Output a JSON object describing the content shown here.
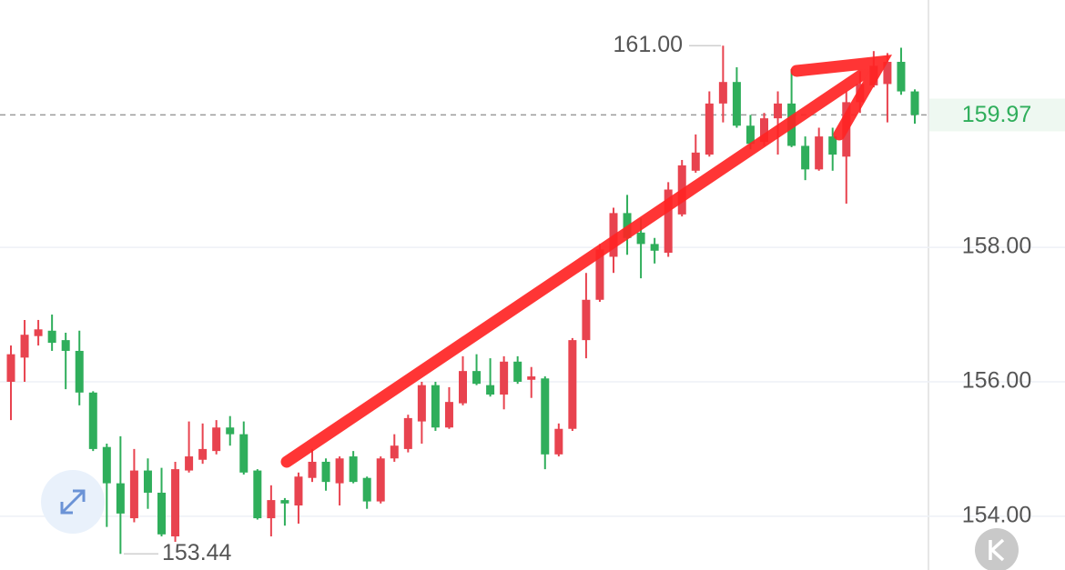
{
  "chart_data": {
    "type": "candlestick",
    "open": [
      156.0,
      156.36,
      156.68,
      156.76,
      156.62,
      156.46,
      155.84,
      155.03,
      154.49,
      153.97,
      154.68,
      154.35,
      153.7,
      154.68,
      154.84,
      154.97,
      155.32,
      155.22,
      154.68,
      153.97,
      154.24,
      154.16,
      154.57,
      154.81,
      154.49,
      154.89,
      154.57,
      154.22,
      154.86,
      155.0,
      155.41,
      155.95,
      155.32,
      155.68,
      156.16,
      155.95,
      155.81,
      156.3,
      156.03,
      156.05,
      154.92,
      155.3,
      156.62,
      157.22,
      157.86,
      158.51,
      158.22,
      158.05,
      157.92,
      158.49,
      159.14,
      159.38,
      160.14,
      160.46,
      159.81,
      159.57,
      159.92,
      160.14,
      159.51,
      159.16,
      159.65,
      159.35,
      160.16,
      160.41,
      160.43,
      160.76,
      160.32
    ],
    "high": [
      156.54,
      156.92,
      156.92,
      157.0,
      156.73,
      156.76,
      155.86,
      155.08,
      155.19,
      155.0,
      154.86,
      154.72,
      154.81,
      155.41,
      155.38,
      155.43,
      155.49,
      155.41,
      154.7,
      154.46,
      154.27,
      154.65,
      155.0,
      154.86,
      154.89,
      154.97,
      154.59,
      154.89,
      155.22,
      155.51,
      156.0,
      156.0,
      155.92,
      156.38,
      156.41,
      156.35,
      156.38,
      156.38,
      156.22,
      156.08,
      155.38,
      156.65,
      157.62,
      158.05,
      158.59,
      158.78,
      158.43,
      158.14,
      158.97,
      159.3,
      159.68,
      160.32,
      161.0,
      160.68,
      159.97,
      160.0,
      160.32,
      160.65,
      159.65,
      159.78,
      159.78,
      160.32,
      160.62,
      160.92,
      160.89,
      160.97,
      160.35
    ],
    "low": [
      155.43,
      156.0,
      156.54,
      156.46,
      155.89,
      155.65,
      154.97,
      153.84,
      153.44,
      153.91,
      154.11,
      153.7,
      153.62,
      154.65,
      154.78,
      154.92,
      155.05,
      154.62,
      153.95,
      153.7,
      153.86,
      153.89,
      154.51,
      154.38,
      154.16,
      154.49,
      154.11,
      154.19,
      154.81,
      154.95,
      155.08,
      155.27,
      155.3,
      155.65,
      155.95,
      155.78,
      155.59,
      155.97,
      155.76,
      154.7,
      154.89,
      155.27,
      156.35,
      157.19,
      157.62,
      157.89,
      157.54,
      157.76,
      157.86,
      158.46,
      159.11,
      159.35,
      159.86,
      159.78,
      159.46,
      159.51,
      159.38,
      159.49,
      159.0,
      159.14,
      159.14,
      158.65,
      160.0,
      160.38,
      159.86,
      160.27,
      159.84
    ],
    "close": [
      156.41,
      156.7,
      156.78,
      156.58,
      156.46,
      155.84,
      155.0,
      154.49,
      154.04,
      154.68,
      154.35,
      153.73,
      154.7,
      154.89,
      155.0,
      155.32,
      155.22,
      154.65,
      153.97,
      154.24,
      154.19,
      154.59,
      154.81,
      154.51,
      154.86,
      154.51,
      154.22,
      154.86,
      155.05,
      155.46,
      155.95,
      155.32,
      155.7,
      156.16,
      155.97,
      155.81,
      156.3,
      156.0,
      156.08,
      154.92,
      155.3,
      156.62,
      157.22,
      157.97,
      158.51,
      158.14,
      158.05,
      157.95,
      158.86,
      159.22,
      159.41,
      160.14,
      160.46,
      159.81,
      159.54,
      159.92,
      160.14,
      159.51,
      159.16,
      159.65,
      159.38,
      160.16,
      160.43,
      160.7,
      160.76,
      160.32,
      159.97
    ],
    "up_color": "#e8434f",
    "down_color": "#2fae5b",
    "ylim": [
      153.2,
      161.68
    ],
    "yticks": [
      {
        "value": 154,
        "label": "154.00"
      },
      {
        "value": 156,
        "label": "156.00"
      },
      {
        "value": 158,
        "label": "158.00"
      }
    ],
    "grid": true,
    "last_price": 159.97,
    "max_marker": {
      "value": 161,
      "label": "161.00"
    },
    "min_marker": 153.44
  }
}
